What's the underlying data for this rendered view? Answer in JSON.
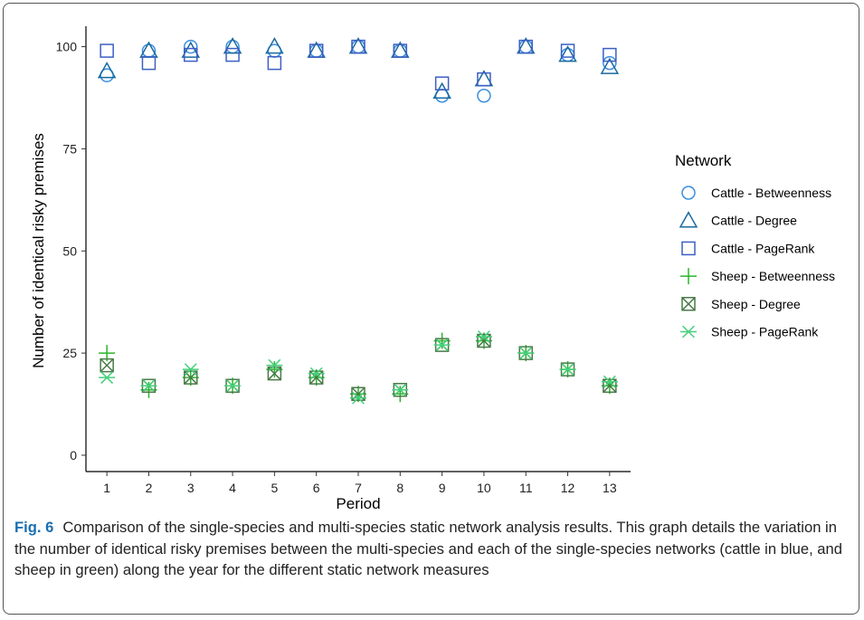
{
  "caption": {
    "label": "Fig. 6",
    "text": "Comparison of the single-species and multi-species static network analysis results. This graph details the variation in the number of identical risky premises between the multi-species and each of the single-species networks (cattle in blue, and sheep in green) along the year for the different static network measures"
  },
  "chart_data": {
    "type": "scatter",
    "title": "",
    "xlabel": "Period",
    "ylabel": "Number of identical risky premises",
    "x": [
      1,
      2,
      3,
      4,
      5,
      6,
      7,
      8,
      9,
      10,
      11,
      12,
      13
    ],
    "xlim": [
      0.5,
      13.5
    ],
    "ylim": [
      -4,
      105
    ],
    "yticks": [
      0,
      25,
      50,
      75,
      100
    ],
    "grid": false,
    "legend": {
      "title": "Network",
      "position": "right"
    },
    "colors": {
      "cattle_betweenness": "#3b8fe0",
      "cattle_degree": "#1a6a9e",
      "cattle_pagerank": "#3c5fc4",
      "sheep_betweenness": "#2bb52b",
      "sheep_degree": "#4a7a4a",
      "sheep_pagerank": "#45d07a"
    },
    "series": [
      {
        "name": "Cattle - Betweenness",
        "marker": "circle",
        "color_key": "cattle_betweenness",
        "values": [
          93,
          99,
          100,
          100,
          99,
          99,
          100,
          99,
          88,
          88,
          100,
          98,
          96
        ]
      },
      {
        "name": "Cattle - Degree",
        "marker": "triangle",
        "color_key": "cattle_degree",
        "values": [
          94,
          99,
          99,
          100,
          100,
          99,
          100,
          99,
          89,
          92,
          100,
          98,
          95
        ]
      },
      {
        "name": "Cattle - PageRank",
        "marker": "square",
        "color_key": "cattle_pagerank",
        "values": [
          99,
          96,
          98,
          98,
          96,
          99,
          100,
          99,
          91,
          92,
          100,
          99,
          98
        ]
      },
      {
        "name": "Sheep - Betweenness",
        "marker": "plus",
        "color_key": "sheep_betweenness",
        "values": [
          25,
          16,
          19,
          17,
          21,
          19,
          15,
          15,
          28,
          28,
          25,
          21,
          17
        ]
      },
      {
        "name": "Sheep - Degree",
        "marker": "boxcross",
        "color_key": "sheep_degree",
        "values": [
          22,
          17,
          19,
          17,
          20,
          19,
          15,
          16,
          27,
          28,
          25,
          21,
          17
        ]
      },
      {
        "name": "Sheep - PageRank",
        "marker": "asterisk",
        "color_key": "sheep_pagerank",
        "values": [
          19,
          17,
          21,
          17,
          22,
          20,
          14,
          16,
          27,
          29,
          25,
          21,
          18
        ]
      }
    ]
  }
}
